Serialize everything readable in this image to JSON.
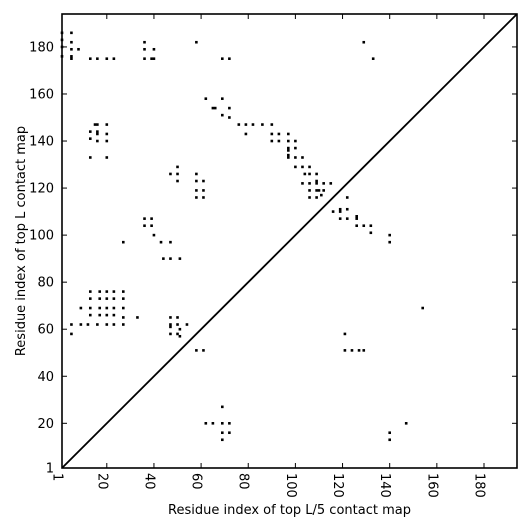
{
  "chart_data": {
    "type": "scatter",
    "title": "",
    "xlabel": "Residue index of top L/5 contact map",
    "ylabel": "Residue index of top L contact map",
    "xlim": [
      1,
      194
    ],
    "ylim": [
      1,
      194
    ],
    "xticks": [
      1,
      20,
      40,
      60,
      80,
      100,
      120,
      140,
      160,
      180
    ],
    "yticks": [
      1,
      20,
      40,
      60,
      80,
      100,
      120,
      140,
      160,
      180
    ],
    "grid": false,
    "legend": "none",
    "diagonal": true,
    "marker": "square",
    "marker_color": "#000000",
    "line_color": "#000000",
    "series": [
      {
        "points": [
          [
            1,
            186
          ],
          [
            1,
            183
          ],
          [
            1,
            180
          ],
          [
            1,
            176
          ],
          [
            5,
            186
          ],
          [
            5,
            182
          ],
          [
            5,
            179
          ],
          [
            5,
            176
          ],
          [
            5,
            175
          ],
          [
            8,
            179
          ],
          [
            13,
            175
          ],
          [
            16,
            175
          ],
          [
            20,
            175
          ],
          [
            23,
            175
          ],
          [
            36,
            182
          ],
          [
            36,
            175
          ],
          [
            36,
            179
          ],
          [
            40,
            179
          ],
          [
            39,
            175
          ],
          [
            40,
            175
          ],
          [
            58,
            182
          ],
          [
            69,
            175
          ],
          [
            72,
            175
          ],
          [
            129,
            182
          ],
          [
            133,
            175
          ],
          [
            62,
            158
          ],
          [
            65,
            154
          ],
          [
            66,
            154
          ],
          [
            69,
            158
          ],
          [
            72,
            154
          ],
          [
            69,
            151
          ],
          [
            72,
            150
          ],
          [
            76,
            147
          ],
          [
            79,
            147
          ],
          [
            82,
            147
          ],
          [
            86,
            147
          ],
          [
            79,
            143
          ],
          [
            90,
            147
          ],
          [
            90,
            143
          ],
          [
            93,
            143
          ],
          [
            90,
            140
          ],
          [
            93,
            140
          ],
          [
            97,
            143
          ],
          [
            97,
            140
          ],
          [
            97,
            137
          ],
          [
            97,
            136
          ],
          [
            97,
            133
          ],
          [
            100,
            140
          ],
          [
            100,
            137
          ],
          [
            100,
            133
          ],
          [
            97,
            134
          ],
          [
            100,
            129
          ],
          [
            103,
            133
          ],
          [
            103,
            129
          ],
          [
            106,
            129
          ],
          [
            104,
            126
          ],
          [
            103,
            122
          ],
          [
            106,
            126
          ],
          [
            106,
            122
          ],
          [
            106,
            119
          ],
          [
            106,
            116
          ],
          [
            109,
            126
          ],
          [
            109,
            123
          ],
          [
            109,
            122
          ],
          [
            109,
            119
          ],
          [
            110,
            119
          ],
          [
            109,
            116
          ],
          [
            112,
            119
          ],
          [
            112,
            122
          ],
          [
            111,
            117
          ],
          [
            115,
            122
          ],
          [
            116,
            110
          ],
          [
            119,
            111
          ],
          [
            119,
            110
          ],
          [
            119,
            107
          ],
          [
            122,
            116
          ],
          [
            122,
            111
          ],
          [
            122,
            107
          ],
          [
            126,
            108
          ],
          [
            126,
            107
          ],
          [
            126,
            104
          ],
          [
            129,
            104
          ],
          [
            132,
            104
          ],
          [
            132,
            101
          ],
          [
            140,
            100
          ],
          [
            140,
            97
          ],
          [
            15,
            147
          ],
          [
            16,
            147
          ],
          [
            16,
            144
          ],
          [
            16,
            143
          ],
          [
            13,
            144
          ],
          [
            13,
            141
          ],
          [
            16,
            140
          ],
          [
            20,
            147
          ],
          [
            20,
            143
          ],
          [
            20,
            140
          ],
          [
            13,
            133
          ],
          [
            20,
            133
          ],
          [
            47,
            126
          ],
          [
            50,
            129
          ],
          [
            50,
            126
          ],
          [
            50,
            123
          ],
          [
            58,
            126
          ],
          [
            58,
            123
          ],
          [
            58,
            119
          ],
          [
            58,
            116
          ],
          [
            61,
            123
          ],
          [
            61,
            119
          ],
          [
            61,
            116
          ],
          [
            36,
            107
          ],
          [
            39,
            107
          ],
          [
            36,
            104
          ],
          [
            39,
            104
          ],
          [
            40,
            100
          ],
          [
            43,
            97
          ],
          [
            47,
            97
          ],
          [
            27,
            97
          ],
          [
            44,
            90
          ],
          [
            47,
            90
          ],
          [
            51,
            90
          ],
          [
            9,
            69
          ],
          [
            13,
            76
          ],
          [
            13,
            73
          ],
          [
            13,
            69
          ],
          [
            13,
            66
          ],
          [
            17,
            76
          ],
          [
            17,
            73
          ],
          [
            17,
            69
          ],
          [
            17,
            66
          ],
          [
            20,
            76
          ],
          [
            20,
            73
          ],
          [
            20,
            69
          ],
          [
            20,
            66
          ],
          [
            23,
            76
          ],
          [
            23,
            73
          ],
          [
            23,
            69
          ],
          [
            23,
            66
          ],
          [
            27,
            76
          ],
          [
            27,
            73
          ],
          [
            27,
            69
          ],
          [
            27,
            65
          ],
          [
            23,
            62
          ],
          [
            27,
            62
          ],
          [
            20,
            62
          ],
          [
            16,
            62
          ],
          [
            12,
            62
          ],
          [
            9,
            62
          ],
          [
            5,
            62
          ],
          [
            5,
            58
          ],
          [
            33,
            65
          ],
          [
            47,
            65
          ],
          [
            47,
            62
          ],
          [
            47,
            61
          ],
          [
            47,
            58
          ],
          [
            50,
            65
          ],
          [
            50,
            62
          ],
          [
            50,
            58
          ],
          [
            51,
            57
          ],
          [
            54,
            62
          ],
          [
            51,
            60
          ],
          [
            58,
            51
          ],
          [
            61,
            51
          ],
          [
            121,
            58
          ],
          [
            121,
            51
          ],
          [
            124,
            51
          ],
          [
            127,
            51
          ],
          [
            129,
            51
          ],
          [
            154,
            69
          ],
          [
            62,
            20
          ],
          [
            65,
            20
          ],
          [
            69,
            20
          ],
          [
            72,
            20
          ],
          [
            69,
            27
          ],
          [
            69,
            16
          ],
          [
            72,
            16
          ],
          [
            69,
            13
          ],
          [
            140,
            16
          ],
          [
            140,
            13
          ],
          [
            147,
            20
          ]
        ]
      }
    ]
  }
}
